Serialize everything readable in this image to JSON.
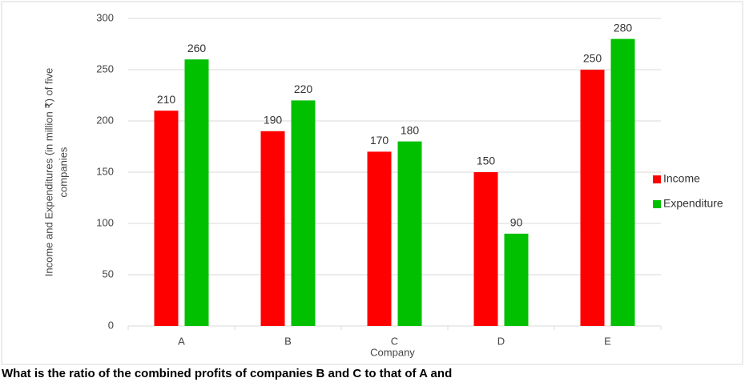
{
  "chart_data": {
    "type": "bar",
    "y_label": [
      "Income and Expenditures (in million ₹) of five",
      "companies"
    ],
    "x_label": "Company",
    "categories": [
      "A",
      "B",
      "C",
      "D",
      "E"
    ],
    "series": [
      {
        "name": "Income",
        "color": "#ff0000",
        "values": [
          210,
          190,
          170,
          150,
          250
        ]
      },
      {
        "name": "Expenditure",
        "color": "#00c000",
        "values": [
          260,
          220,
          180,
          90,
          280
        ]
      }
    ],
    "ylim": [
      0,
      300
    ],
    "yticks": [
      0,
      50,
      100,
      150,
      200,
      250,
      300
    ],
    "grid": true,
    "legend": "right"
  },
  "question": "What is the ratio of the combined profits of companies B and C to that of A and"
}
